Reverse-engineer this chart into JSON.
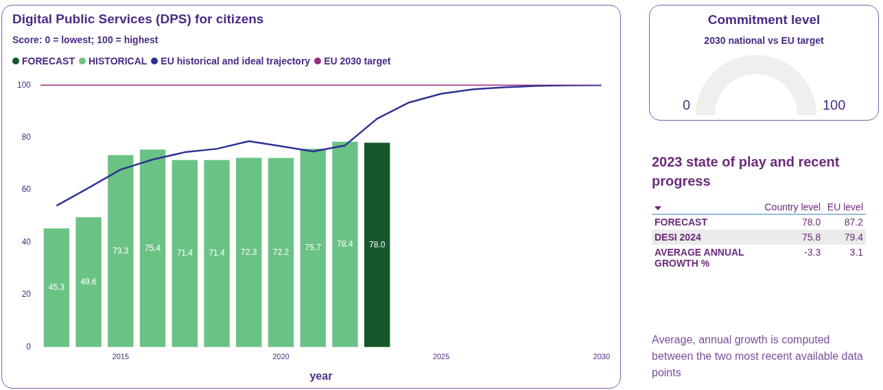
{
  "chart_data": [
    {
      "type": "bar",
      "title": "Digital Public Services (DPS) for citizens",
      "subtitle": "Score: 0 = lowest; 100 = highest",
      "xlabel": "year",
      "xlim": [
        2012.5,
        2030
      ],
      "xticks": [
        2015,
        2020,
        2025,
        2030
      ],
      "ylim": [
        0,
        100
      ],
      "yticks": [
        0,
        20,
        40,
        60,
        80,
        100
      ],
      "grid": false,
      "legend": "top left",
      "series": [
        {
          "name": "FORECAST",
          "color": "#14572b",
          "x": [
            2023
          ],
          "values": [
            78.0
          ],
          "value_labels": [
            "78.0"
          ]
        },
        {
          "name": "HISTORICAL",
          "color": "#6ac285",
          "x": [
            2013,
            2014,
            2015,
            2016,
            2017,
            2018,
            2019,
            2020,
            2021,
            2022
          ],
          "values": [
            45.3,
            49.6,
            73.3,
            75.4,
            71.4,
            71.4,
            72.3,
            72.2,
            75.7,
            78.4
          ],
          "value_labels": [
            "45.3",
            "49.6",
            "73.3",
            "75.4",
            "71.4",
            "71.4",
            "72.3",
            "72.2",
            "75.7",
            "78.4"
          ]
        },
        {
          "name": "EU historical and ideal trajectory",
          "type": "line",
          "color": "#2e3192",
          "x": [
            2013,
            2014,
            2015,
            2016,
            2017,
            2018,
            2019,
            2020,
            2021,
            2022,
            2023,
            2024,
            2025,
            2026,
            2027,
            2028,
            2029,
            2030
          ],
          "values": [
            54.0,
            60.8,
            67.8,
            71.6,
            74.4,
            75.7,
            78.6,
            76.7,
            74.7,
            77.0,
            87.2,
            93.4,
            96.7,
            98.4,
            99.2,
            99.7,
            99.9,
            100
          ]
        }
      ],
      "ref_lines": [
        {
          "axis": "y",
          "value": 100,
          "label": "EU 2030 target",
          "color": "#9c2a7f"
        }
      ]
    },
    {
      "type": "other",
      "title": "Commitment level",
      "subtitle": "2030 national vs EU target",
      "annotations": [
        "0",
        "100"
      ]
    },
    {
      "type": "other",
      "title": "2023 state of play and recent progress",
      "categories": [
        "FORECAST",
        "DESI 2024",
        "AVERAGE ANNUAL GROWTH %"
      ],
      "series": [
        {
          "name": "Country level",
          "values": [
            78.0,
            75.8,
            -3.3
          ],
          "value_labels": [
            "78.0",
            "75.8",
            "-3.3"
          ]
        },
        {
          "name": "EU level",
          "values": [
            87.2,
            79.4,
            3.1
          ],
          "value_labels": [
            "87.2",
            "79.4",
            "3.1"
          ]
        }
      ],
      "annotations": [
        "Average, annual growth is computed between the two most recent available data points"
      ]
    }
  ]
}
